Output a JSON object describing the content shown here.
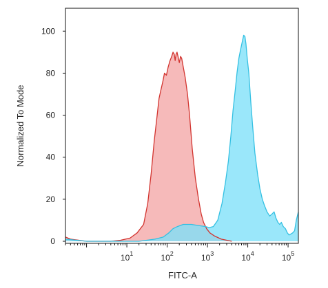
{
  "chart_data": {
    "type": "area",
    "title": "",
    "xlabel": "FITC-A",
    "ylabel": "Normalized To Mode",
    "x_scale": "log",
    "xlim": [
      0.3,
      180000
    ],
    "ylim": [
      0,
      105
    ],
    "yticks": [
      0,
      20,
      40,
      60,
      80,
      100
    ],
    "xticks": [
      {
        "value": 10,
        "base": "10",
        "exp": "1"
      },
      {
        "value": 100,
        "base": "10",
        "exp": "2"
      },
      {
        "value": 1000,
        "base": "10",
        "exp": "3"
      },
      {
        "value": 10000,
        "base": "10",
        "exp": "4"
      },
      {
        "value": 100000,
        "base": "10",
        "exp": "5"
      }
    ],
    "grid": false,
    "legend": "none",
    "series": [
      {
        "color": "#f4a6a6",
        "stroke": "#d2342f",
        "points": [
          [
            0.3,
            2
          ],
          [
            0.4,
            1
          ],
          [
            1,
            0
          ],
          [
            4,
            0
          ],
          [
            7,
            0.5
          ],
          [
            12,
            1.5
          ],
          [
            18,
            4
          ],
          [
            26,
            8
          ],
          [
            33,
            18
          ],
          [
            40,
            32
          ],
          [
            48,
            48
          ],
          [
            55,
            58
          ],
          [
            63,
            68
          ],
          [
            70,
            72
          ],
          [
            78,
            76
          ],
          [
            86,
            80
          ],
          [
            96,
            79
          ],
          [
            106,
            83
          ],
          [
            118,
            86
          ],
          [
            130,
            88
          ],
          [
            140,
            90
          ],
          [
            150,
            89
          ],
          [
            158,
            86
          ],
          [
            166,
            89
          ],
          [
            176,
            90
          ],
          [
            186,
            88
          ],
          [
            200,
            85
          ],
          [
            215,
            88
          ],
          [
            230,
            87
          ],
          [
            250,
            83
          ],
          [
            280,
            78
          ],
          [
            320,
            70
          ],
          [
            360,
            60
          ],
          [
            420,
            44
          ],
          [
            500,
            30
          ],
          [
            600,
            20
          ],
          [
            700,
            13
          ],
          [
            800,
            9
          ],
          [
            950,
            6
          ],
          [
            1150,
            4
          ],
          [
            1500,
            2.5
          ],
          [
            2200,
            1
          ],
          [
            3000,
            0.5
          ],
          [
            4000,
            0
          ]
        ]
      },
      {
        "color": "#7ee0f8",
        "stroke": "#34c0e2",
        "points": [
          [
            0.3,
            1
          ],
          [
            1,
            0
          ],
          [
            5,
            0
          ],
          [
            20,
            0
          ],
          [
            50,
            1
          ],
          [
            80,
            2
          ],
          [
            110,
            4
          ],
          [
            140,
            6
          ],
          [
            180,
            7
          ],
          [
            250,
            8
          ],
          [
            400,
            8
          ],
          [
            600,
            7.5
          ],
          [
            900,
            7
          ],
          [
            1100,
            6.5
          ],
          [
            1400,
            7
          ],
          [
            1800,
            10
          ],
          [
            2300,
            18
          ],
          [
            2800,
            28
          ],
          [
            3300,
            38
          ],
          [
            3800,
            50
          ],
          [
            4300,
            62
          ],
          [
            4900,
            72
          ],
          [
            5400,
            80
          ],
          [
            6000,
            87
          ],
          [
            6600,
            91
          ],
          [
            7300,
            95
          ],
          [
            7900,
            98
          ],
          [
            8500,
            97.5
          ],
          [
            9000,
            94
          ],
          [
            9700,
            87
          ],
          [
            10600,
            80
          ],
          [
            11800,
            67
          ],
          [
            13200,
            55
          ],
          [
            15000,
            42
          ],
          [
            17500,
            32
          ],
          [
            20000,
            25
          ],
          [
            23000,
            20
          ],
          [
            26000,
            17
          ],
          [
            30000,
            14
          ],
          [
            35000,
            12
          ],
          [
            40000,
            13
          ],
          [
            45000,
            14
          ],
          [
            50000,
            11
          ],
          [
            56000,
            9
          ],
          [
            62000,
            8
          ],
          [
            68000,
            9
          ],
          [
            76000,
            7
          ],
          [
            86000,
            6
          ],
          [
            96000,
            4
          ],
          [
            106000,
            3
          ],
          [
            118000,
            3.5
          ],
          [
            130000,
            4
          ],
          [
            145000,
            5
          ],
          [
            160000,
            10
          ],
          [
            170000,
            12
          ],
          [
            180000,
            14
          ]
        ]
      }
    ]
  }
}
